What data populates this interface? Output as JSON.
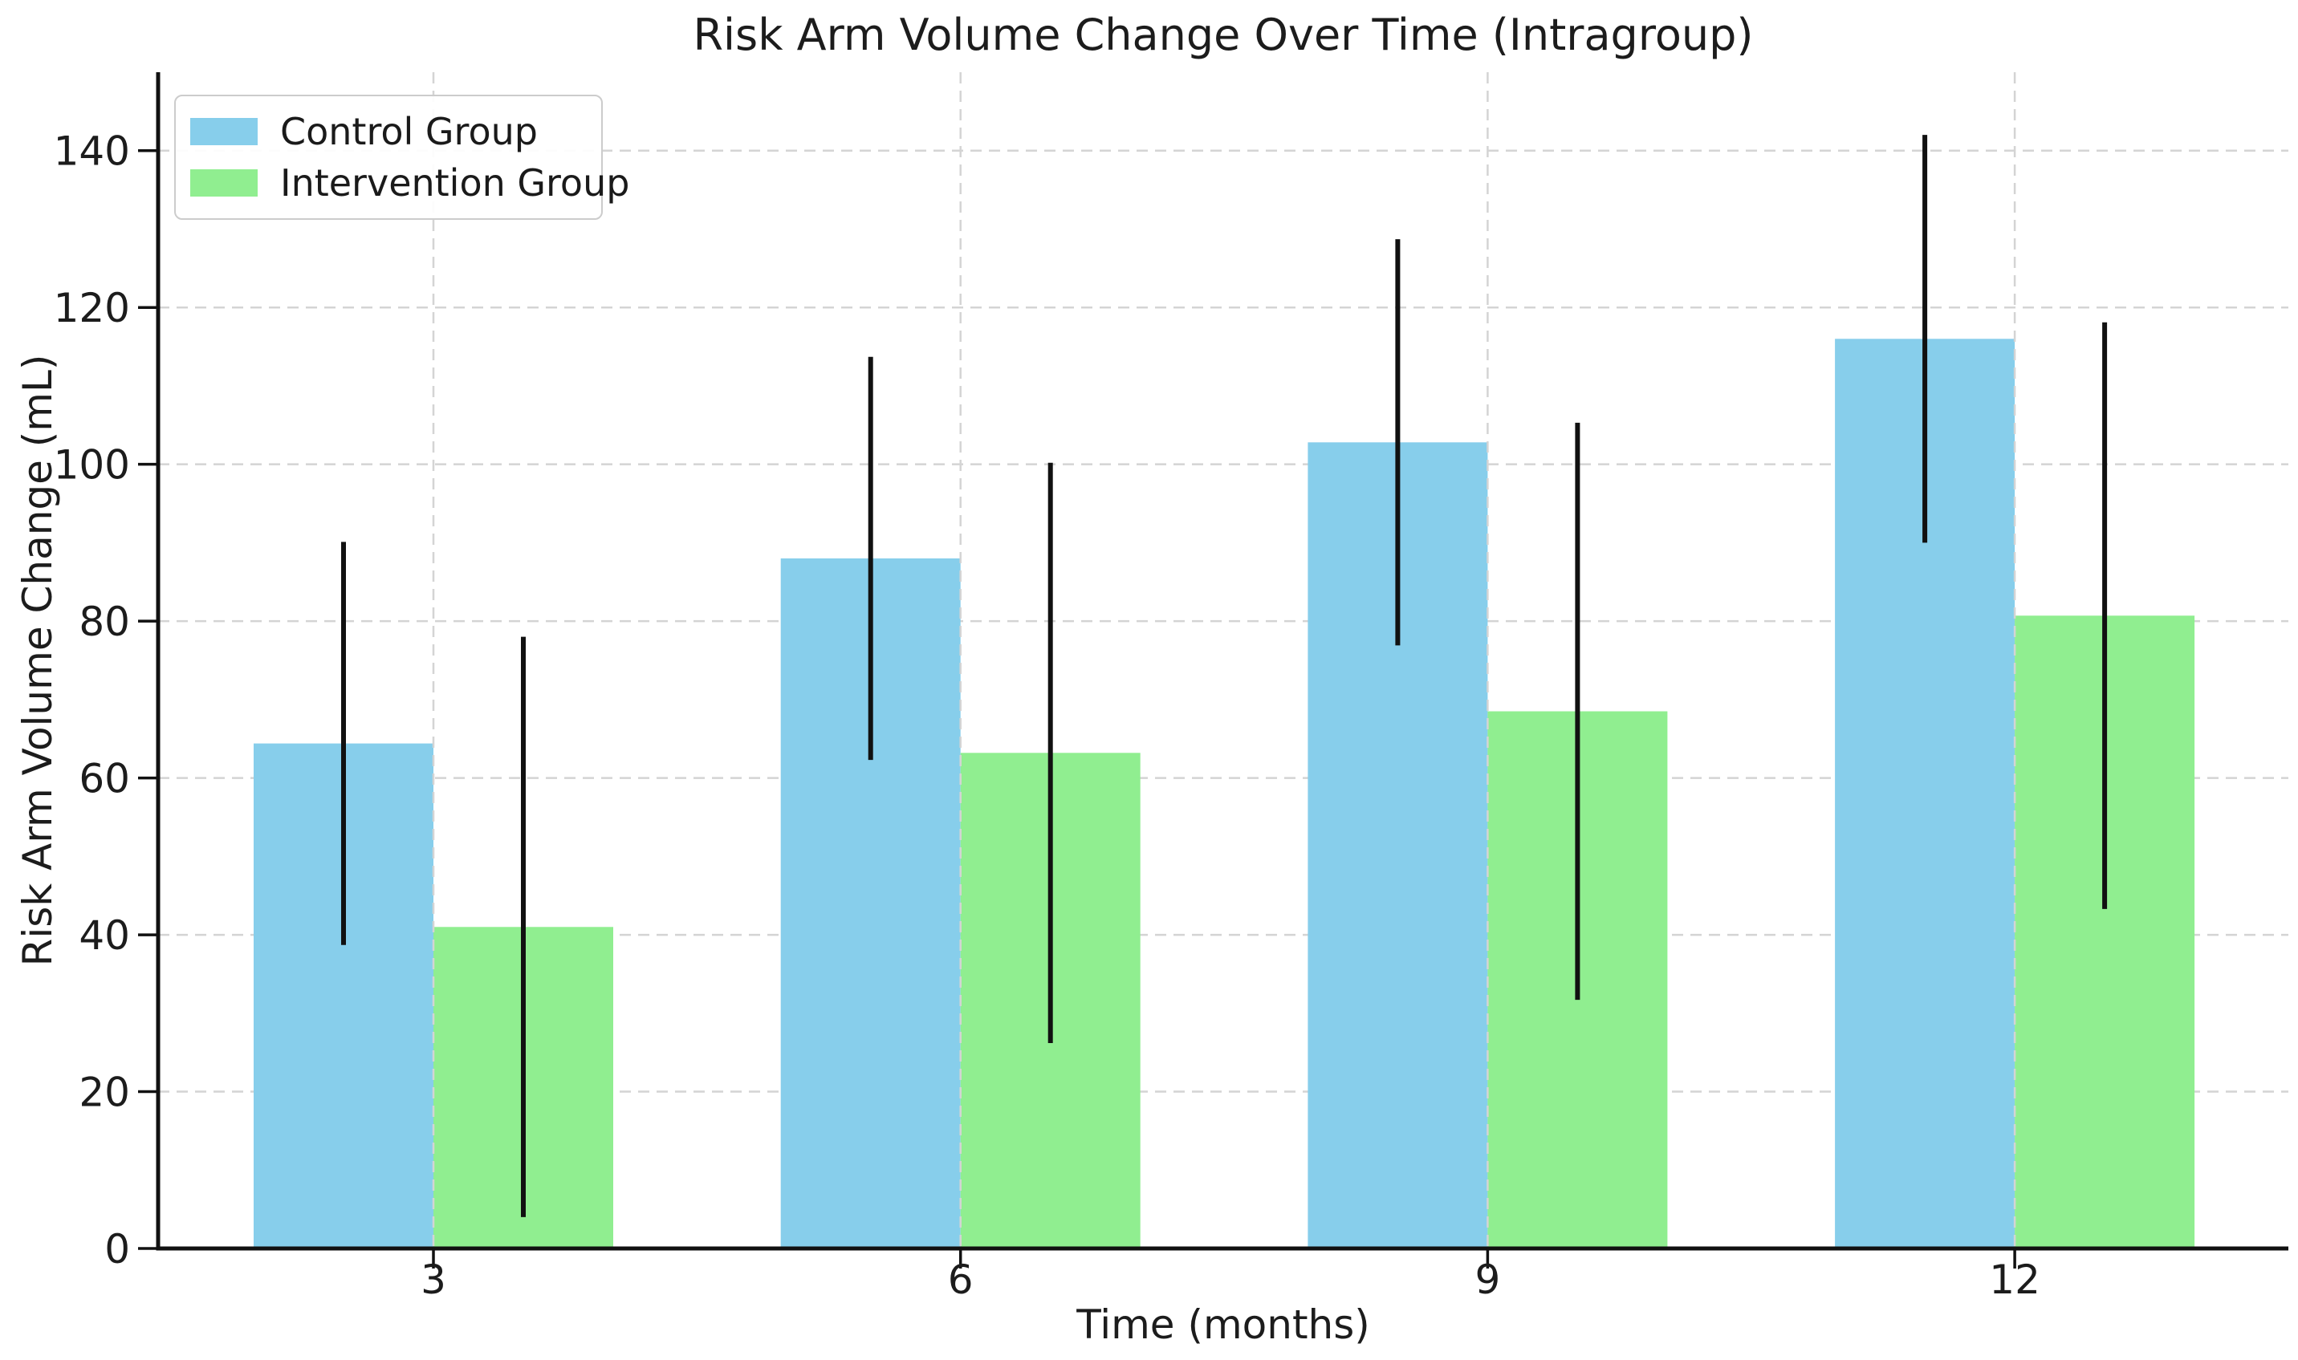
{
  "chart_data": {
    "type": "bar",
    "title": "Risk Arm Volume Change Over Time (Intragroup)",
    "xlabel": "Time (months)",
    "ylabel": "Risk Arm Volume Change (mL)",
    "categories": [
      "3",
      "6",
      "9",
      "12"
    ],
    "series": [
      {
        "name": "Control Group",
        "color": "#87CEEB",
        "values": [
          64.4,
          88.0,
          102.8,
          116.0
        ],
        "errors": [
          25.7,
          25.7,
          25.9,
          26.0
        ]
      },
      {
        "name": "Intervention Group",
        "color": "#90EE90",
        "values": [
          41.0,
          63.2,
          68.5,
          80.7
        ],
        "errors": [
          37.0,
          37.0,
          36.8,
          37.4
        ]
      }
    ],
    "ylim": [
      0,
      150
    ],
    "yticks": [
      0,
      20,
      40,
      60,
      80,
      100,
      120,
      140
    ],
    "grid": "dashed both-directions",
    "legend_position": "upper left",
    "error_bar_color": "#111111",
    "axis_color": "#111111",
    "grid_color": "#d4d4d4",
    "background": "#ffffff"
  }
}
